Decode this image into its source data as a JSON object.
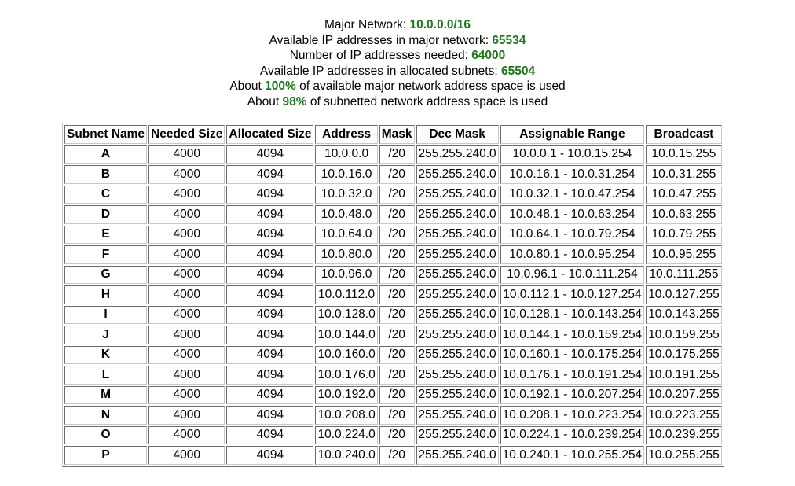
{
  "summary": {
    "major_network_label": "Major Network: ",
    "major_network_value": "10.0.0.0/16",
    "available_label": "Available IP addresses in major network: ",
    "available_value": "65534",
    "needed_label": "Number of IP addresses needed: ",
    "needed_value": "64000",
    "allocated_label": "Available IP addresses in allocated subnets: ",
    "allocated_value": "65504",
    "about1_prefix": "About ",
    "about1_value": "100%",
    "about1_suffix": " of available major network address space is used",
    "about2_prefix": "About ",
    "about2_value": "98%",
    "about2_suffix": " of subnetted network address space is used"
  },
  "table": {
    "headers": [
      "Subnet Name",
      "Needed Size",
      "Allocated Size",
      "Address",
      "Mask",
      "Dec Mask",
      "Assignable Range",
      "Broadcast"
    ],
    "rows": [
      [
        "A",
        "4000",
        "4094",
        "10.0.0.0",
        "/20",
        "255.255.240.0",
        "10.0.0.1 - 10.0.15.254",
        "10.0.15.255"
      ],
      [
        "B",
        "4000",
        "4094",
        "10.0.16.0",
        "/20",
        "255.255.240.0",
        "10.0.16.1 - 10.0.31.254",
        "10.0.31.255"
      ],
      [
        "C",
        "4000",
        "4094",
        "10.0.32.0",
        "/20",
        "255.255.240.0",
        "10.0.32.1 - 10.0.47.254",
        "10.0.47.255"
      ],
      [
        "D",
        "4000",
        "4094",
        "10.0.48.0",
        "/20",
        "255.255.240.0",
        "10.0.48.1 - 10.0.63.254",
        "10.0.63.255"
      ],
      [
        "E",
        "4000",
        "4094",
        "10.0.64.0",
        "/20",
        "255.255.240.0",
        "10.0.64.1 - 10.0.79.254",
        "10.0.79.255"
      ],
      [
        "F",
        "4000",
        "4094",
        "10.0.80.0",
        "/20",
        "255.255.240.0",
        "10.0.80.1 - 10.0.95.254",
        "10.0.95.255"
      ],
      [
        "G",
        "4000",
        "4094",
        "10.0.96.0",
        "/20",
        "255.255.240.0",
        "10.0.96.1 - 10.0.111.254",
        "10.0.111.255"
      ],
      [
        "H",
        "4000",
        "4094",
        "10.0.112.0",
        "/20",
        "255.255.240.0",
        "10.0.112.1 - 10.0.127.254",
        "10.0.127.255"
      ],
      [
        "I",
        "4000",
        "4094",
        "10.0.128.0",
        "/20",
        "255.255.240.0",
        "10.0.128.1 - 10.0.143.254",
        "10.0.143.255"
      ],
      [
        "J",
        "4000",
        "4094",
        "10.0.144.0",
        "/20",
        "255.255.240.0",
        "10.0.144.1 - 10.0.159.254",
        "10.0.159.255"
      ],
      [
        "K",
        "4000",
        "4094",
        "10.0.160.0",
        "/20",
        "255.255.240.0",
        "10.0.160.1 - 10.0.175.254",
        "10.0.175.255"
      ],
      [
        "L",
        "4000",
        "4094",
        "10.0.176.0",
        "/20",
        "255.255.240.0",
        "10.0.176.1 - 10.0.191.254",
        "10.0.191.255"
      ],
      [
        "M",
        "4000",
        "4094",
        "10.0.192.0",
        "/20",
        "255.255.240.0",
        "10.0.192.1 - 10.0.207.254",
        "10.0.207.255"
      ],
      [
        "N",
        "4000",
        "4094",
        "10.0.208.0",
        "/20",
        "255.255.240.0",
        "10.0.208.1 - 10.0.223.254",
        "10.0.223.255"
      ],
      [
        "O",
        "4000",
        "4094",
        "10.0.224.0",
        "/20",
        "255.255.240.0",
        "10.0.224.1 - 10.0.239.254",
        "10.0.239.255"
      ],
      [
        "P",
        "4000",
        "4094",
        "10.0.240.0",
        "/20",
        "255.255.240.0",
        "10.0.240.1 - 10.0.255.254",
        "10.0.255.255"
      ]
    ]
  },
  "colors": {
    "highlight": "#1a7a1a"
  }
}
